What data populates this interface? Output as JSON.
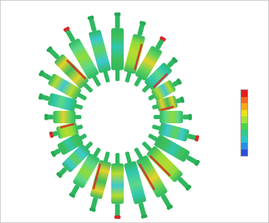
{
  "figure": {
    "description_type": "stress contour plot of blade ring",
    "colormap": [
      "#e0201e",
      "#f06a1e",
      "#f2a81e",
      "#e8e21e",
      "#a8e03a",
      "#4cd24a",
      "#2ecc8a",
      "#2bc7c2",
      "#2b8fe0",
      "#2a4fd8"
    ],
    "blade_count": 24,
    "blade_palette": [
      "#3fbf5a",
      "#8fdc3a",
      "#5fd35a",
      "#2fc7b0",
      "#b8dc2e",
      "#e6d22a",
      "#5cd88a",
      "#3cc8d0"
    ],
    "shaft_color": "#2fb860",
    "hot_accent": "#d42a2a"
  },
  "colorbar": {
    "tick_labels": [
      "",
      "",
      "",
      "",
      "",
      "",
      "",
      "",
      "",
      ""
    ]
  }
}
